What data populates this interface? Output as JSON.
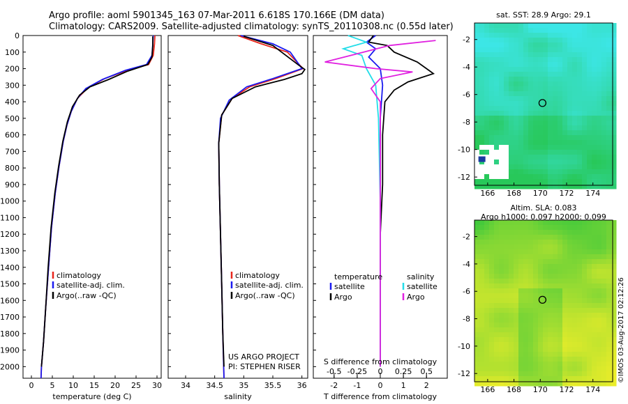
{
  "header": {
    "line1": "Argo profile: aoml 5901345_163 07-Mar-2011 6.618S 170.166E (DM data)",
    "line2": "Climatology: CARS2009. Satellite-adjusted climatology: synTS_20110308.nc (0.55d later)"
  },
  "colors": {
    "climatology": "#e8251b",
    "satellite": "#1a1af0",
    "argo": "#000000",
    "argo_s": "#e020e0",
    "sat_s": "#22dde8"
  },
  "footer": {
    "project": "US ARGO PROJECT",
    "pi": "PI: STEPHEN RISER",
    "timestamp": "©IMOS 03-Aug-2017 02:12:26"
  },
  "chart_data": [
    {
      "type": "line",
      "panel": "temperature",
      "xlabel": "temperature (deg C)",
      "xlim": [
        -2,
        31
      ],
      "xticks": [
        "0",
        "5",
        "10",
        "15",
        "20",
        "25",
        "30"
      ],
      "ylim": [
        2070,
        0
      ],
      "yticks": [
        "0",
        "100",
        "200",
        "300",
        "400",
        "500",
        "600",
        "700",
        "800",
        "900",
        "1000",
        "1100",
        "1200",
        "1300",
        "1400",
        "1500",
        "1600",
        "1700",
        "1800",
        "1900",
        "2000"
      ],
      "legend": [
        "climatology",
        "satellite-adj. clim.",
        "Argo(..raw -QC)"
      ],
      "series": [
        {
          "name": "climatology",
          "points": [
            [
              29.5,
              0
            ],
            [
              29.4,
              50
            ],
            [
              29.1,
              120
            ],
            [
              28,
              175
            ],
            [
              23,
              210
            ],
            [
              17.5,
              260
            ],
            [
              13.5,
              315
            ],
            [
              11,
              380
            ],
            [
              9.5,
              460
            ],
            [
              8.5,
              540
            ],
            [
              7.6,
              640
            ],
            [
              6.6,
              790
            ],
            [
              5.7,
              950
            ],
            [
              4.8,
              1160
            ],
            [
              4.1,
              1400
            ],
            [
              3.4,
              1650
            ],
            [
              2.9,
              1850
            ],
            [
              2.4,
              2000
            ],
            [
              2.3,
              2070
            ]
          ]
        },
        {
          "name": "satellite-adj. clim.",
          "points": [
            [
              29.1,
              0
            ],
            [
              29.0,
              50
            ],
            [
              28.8,
              120
            ],
            [
              27.5,
              175
            ],
            [
              22.5,
              210
            ],
            [
              17,
              265
            ],
            [
              13,
              320
            ],
            [
              11,
              380
            ],
            [
              9.5,
              460
            ],
            [
              8.5,
              540
            ],
            [
              7.6,
              640
            ],
            [
              6.6,
              790
            ],
            [
              5.7,
              950
            ],
            [
              4.8,
              1160
            ],
            [
              4.1,
              1400
            ],
            [
              3.4,
              1650
            ],
            [
              2.9,
              1850
            ],
            [
              2.4,
              2000
            ],
            [
              2.3,
              2070
            ]
          ]
        },
        {
          "name": "Argo(..raw -QC)",
          "points": [
            [
              29,
              5
            ],
            [
              29,
              60
            ],
            [
              28.8,
              130
            ],
            [
              27.8,
              175
            ],
            [
              23,
              215
            ],
            [
              18.5,
              265
            ],
            [
              14,
              310
            ],
            [
              11.5,
              360
            ],
            [
              9.8,
              430
            ],
            [
              8.6,
              520
            ],
            [
              7.5,
              640
            ],
            [
              6.5,
              790
            ],
            [
              5.6,
              950
            ],
            [
              4.7,
              1160
            ],
            [
              4,
              1400
            ],
            [
              3.4,
              1650
            ],
            [
              2.9,
              1850
            ],
            [
              2.4,
              2000
            ]
          ]
        }
      ]
    },
    {
      "type": "line",
      "panel": "salinity",
      "xlabel": "salinity",
      "xlim": [
        33.7,
        36.1
      ],
      "xticks": [
        "34",
        "34.5",
        "35",
        "35.5",
        "36"
      ],
      "legend": [
        "climatology",
        "satellite-adj. clim.",
        "Argo(..raw -QC)"
      ],
      "series": [
        {
          "name": "climatology",
          "points": [
            [
              34.9,
              0
            ],
            [
              35.3,
              50
            ],
            [
              35.75,
              100
            ],
            [
              36.02,
              200
            ],
            [
              35.55,
              260
            ],
            [
              35.1,
              310
            ],
            [
              34.8,
              380
            ],
            [
              34.62,
              480
            ],
            [
              34.57,
              650
            ],
            [
              34.58,
              900
            ],
            [
              34.6,
              1200
            ],
            [
              34.62,
              1500
            ],
            [
              34.64,
              1800
            ],
            [
              34.66,
              2070
            ]
          ]
        },
        {
          "name": "satellite-adj. clim.",
          "points": [
            [
              34.95,
              0
            ],
            [
              35.5,
              50
            ],
            [
              35.8,
              100
            ],
            [
              36.0,
              200
            ],
            [
              35.5,
              260
            ],
            [
              35.05,
              310
            ],
            [
              34.75,
              390
            ],
            [
              34.6,
              500
            ],
            [
              34.57,
              650
            ],
            [
              34.58,
              900
            ],
            [
              34.6,
              1200
            ],
            [
              34.62,
              1500
            ],
            [
              34.64,
              1800
            ],
            [
              34.66,
              2070
            ]
          ]
        },
        {
          "name": "Argo(..raw -QC)",
          "points": [
            [
              35,
              5
            ],
            [
              35.5,
              60
            ],
            [
              35.95,
              180
            ],
            [
              36.05,
              205
            ],
            [
              36.0,
              230
            ],
            [
              35.7,
              265
            ],
            [
              35.2,
              310
            ],
            [
              34.8,
              380
            ],
            [
              34.62,
              480
            ],
            [
              34.57,
              650
            ],
            [
              34.58,
              900
            ],
            [
              34.6,
              1200
            ],
            [
              34.62,
              1500
            ],
            [
              34.64,
              1800
            ],
            [
              34.66,
              2000
            ]
          ]
        }
      ]
    },
    {
      "type": "line",
      "panel": "difference",
      "xlabel_top": "S difference from climatology",
      "xticks_top": [
        "-0.5",
        "-0.25",
        "0",
        "0.25",
        "0.5"
      ],
      "xlabel": "T difference from climatology",
      "xticks": [
        "-2",
        "-1",
        "0",
        "1",
        "2"
      ],
      "xlim": [
        -2.9,
        2.9
      ],
      "legend_left_title": "temperature",
      "legend_right_title": "salinity",
      "legend": [
        "satellite",
        "Argo",
        "satellite",
        "Argo"
      ],
      "series": [
        {
          "name": "temperature satellite",
          "points": [
            [
              -0.2,
              0
            ],
            [
              -0.6,
              40
            ],
            [
              -0.2,
              80
            ],
            [
              -0.5,
              130
            ],
            [
              0,
              200
            ],
            [
              0.1,
              300
            ],
            [
              0,
              500
            ],
            [
              0,
              1000
            ],
            [
              0,
              1500
            ],
            [
              0,
              2000
            ]
          ]
        },
        {
          "name": "temperature Argo",
          "points": [
            [
              -0.3,
              0
            ],
            [
              -0.5,
              40
            ],
            [
              0.3,
              60
            ],
            [
              0.6,
              100
            ],
            [
              1.6,
              160
            ],
            [
              2.1,
              210
            ],
            [
              2.3,
              230
            ],
            [
              1.2,
              280
            ],
            [
              0.6,
              330
            ],
            [
              0.2,
              400
            ],
            [
              0.1,
              600
            ],
            [
              0.1,
              900
            ],
            [
              0,
              1200
            ],
            [
              0,
              1600
            ],
            [
              0,
              2000
            ]
          ]
        },
        {
          "name": "salinity satellite",
          "points": [
            [
              -0.35,
              0
            ],
            [
              -0.15,
              40
            ],
            [
              -0.4,
              80
            ],
            [
              -0.2,
              120
            ],
            [
              -0.15,
              200
            ],
            [
              -0.05,
              300
            ],
            [
              -0.02,
              500
            ],
            [
              0,
              1000
            ],
            [
              0,
              1500
            ],
            [
              0,
              2000
            ]
          ]
        },
        {
          "name": "salinity Argo",
          "points": [
            [
              0.6,
              30
            ],
            [
              0.1,
              60
            ],
            [
              -0.6,
              160
            ],
            [
              -0.05,
              200
            ],
            [
              0.35,
              220
            ],
            [
              0,
              260
            ],
            [
              -0.1,
              320
            ],
            [
              0,
              400
            ],
            [
              0,
              1000
            ],
            [
              0,
              1500
            ],
            [
              0,
              2000
            ]
          ]
        }
      ]
    },
    {
      "type": "heatmap",
      "panel": "sst_map",
      "title": "sat. SST: 28.9 Argo: 29.1",
      "xticks": [
        "166",
        "168",
        "170",
        "172",
        "174"
      ],
      "yticks": [
        "-2",
        "-4",
        "-6",
        "-8",
        "-10",
        "-12"
      ],
      "xlim": [
        165,
        175.5
      ],
      "ylim": [
        -12.6,
        -0.8
      ],
      "marker": [
        170.166,
        -6.618
      ]
    },
    {
      "type": "heatmap",
      "panel": "sla_map",
      "title1": "Altim. SLA: 0.083",
      "title2": "Argo h1000: 0.097 h2000: 0.099",
      "xticks": [
        "166",
        "168",
        "170",
        "172",
        "174"
      ],
      "yticks": [
        "-2",
        "-4",
        "-6",
        "-8",
        "-10",
        "-12"
      ],
      "xlim": [
        165,
        175.5
      ],
      "ylim": [
        -12.6,
        -0.8
      ],
      "marker": [
        170.166,
        -6.618
      ]
    }
  ]
}
